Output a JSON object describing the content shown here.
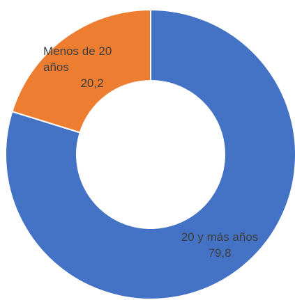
{
  "chart_data": {
    "type": "donut",
    "categories": [
      "20 y más años",
      "Menos de 20 años"
    ],
    "values": [
      79.8,
      20.2
    ],
    "value_labels": [
      "79,8",
      "20,2"
    ],
    "colors": [
      "#4472c4",
      "#ed7d31"
    ]
  }
}
